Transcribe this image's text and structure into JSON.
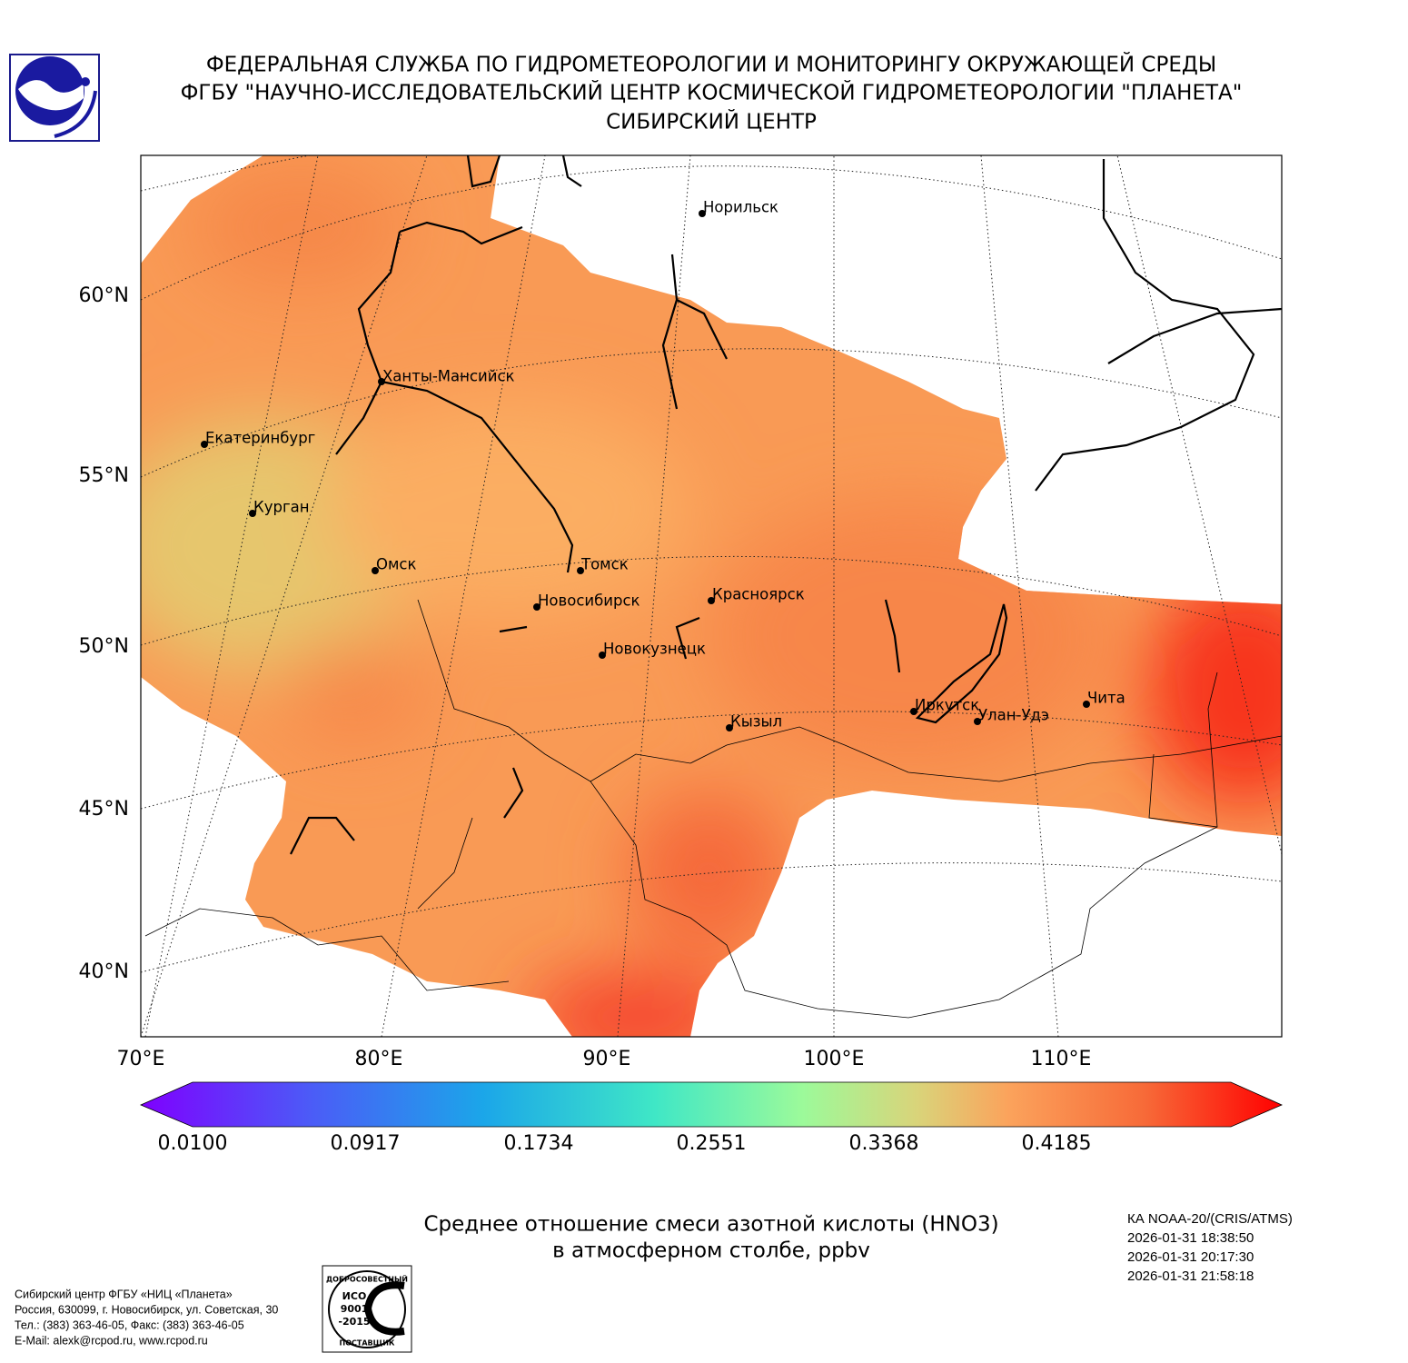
{
  "header": {
    "lines": [
      "ФЕДЕРАЛЬНАЯ СЛУЖБА ПО ГИДРОМЕТЕОРОЛОГИИ И МОНИТОРИНГУ ОКРУЖАЮЩЕЙ СРЕДЫ",
      "ФГБУ \"НАУЧНО-ИССЛЕДОВАТЕЛЬСКИЙ ЦЕНТР КОСМИЧЕСКОЙ ГИДРОМЕТЕОРОЛОГИИ \"ПЛАНЕТА\"",
      "СИБИРСКИЙ ЦЕНТР"
    ]
  },
  "map": {
    "lat_labels": [
      "60°N",
      "55°N",
      "50°N",
      "45°N",
      "40°N"
    ],
    "lon_labels": [
      "70°E",
      "80°E",
      "90°E",
      "100°E",
      "110°E"
    ],
    "cities": [
      "Норильск",
      "Ханты-Мансийск",
      "Екатеринбург",
      "Курган",
      "Омск",
      "Томск",
      "Новосибирск",
      "Красноярск",
      "Новокузнецк",
      "Кызыл",
      "Иркутск",
      "Улан-Удэ",
      "Чита"
    ]
  },
  "colorbar": {
    "ticks": [
      "0.0100",
      "0.0917",
      "0.1734",
      "0.2551",
      "0.3368",
      "0.4185"
    ]
  },
  "caption": {
    "lines": [
      "Среднее отношение смеси азотной кислоты (HNO3)",
      "в атмосферном столбе, ppbv"
    ]
  },
  "satellite": {
    "lines": [
      "КА NOAA-20/(CRIS/ATMS)",
      "2026-01-31 18:38:50",
      "2026-01-31 20:17:30",
      "2026-01-31 21:58:18"
    ]
  },
  "footer": {
    "lines": [
      "Сибирский центр ФГБУ «НИЦ «Планета»",
      "Россия, 630099, г. Новосибирск, ул. Советская, 30",
      "Тел.: (383) 363-46-05, Факс: (383) 363-46-05",
      "E-Mail: alexk@rcpod.ru, www.rcpod.ru"
    ]
  },
  "certificate": {
    "top": "ДОБРОСОВЕСТНЫЙ",
    "iso": [
      "ИСО",
      "9001",
      "-2015"
    ],
    "bottom": "ПОСТАВЩИК"
  }
}
